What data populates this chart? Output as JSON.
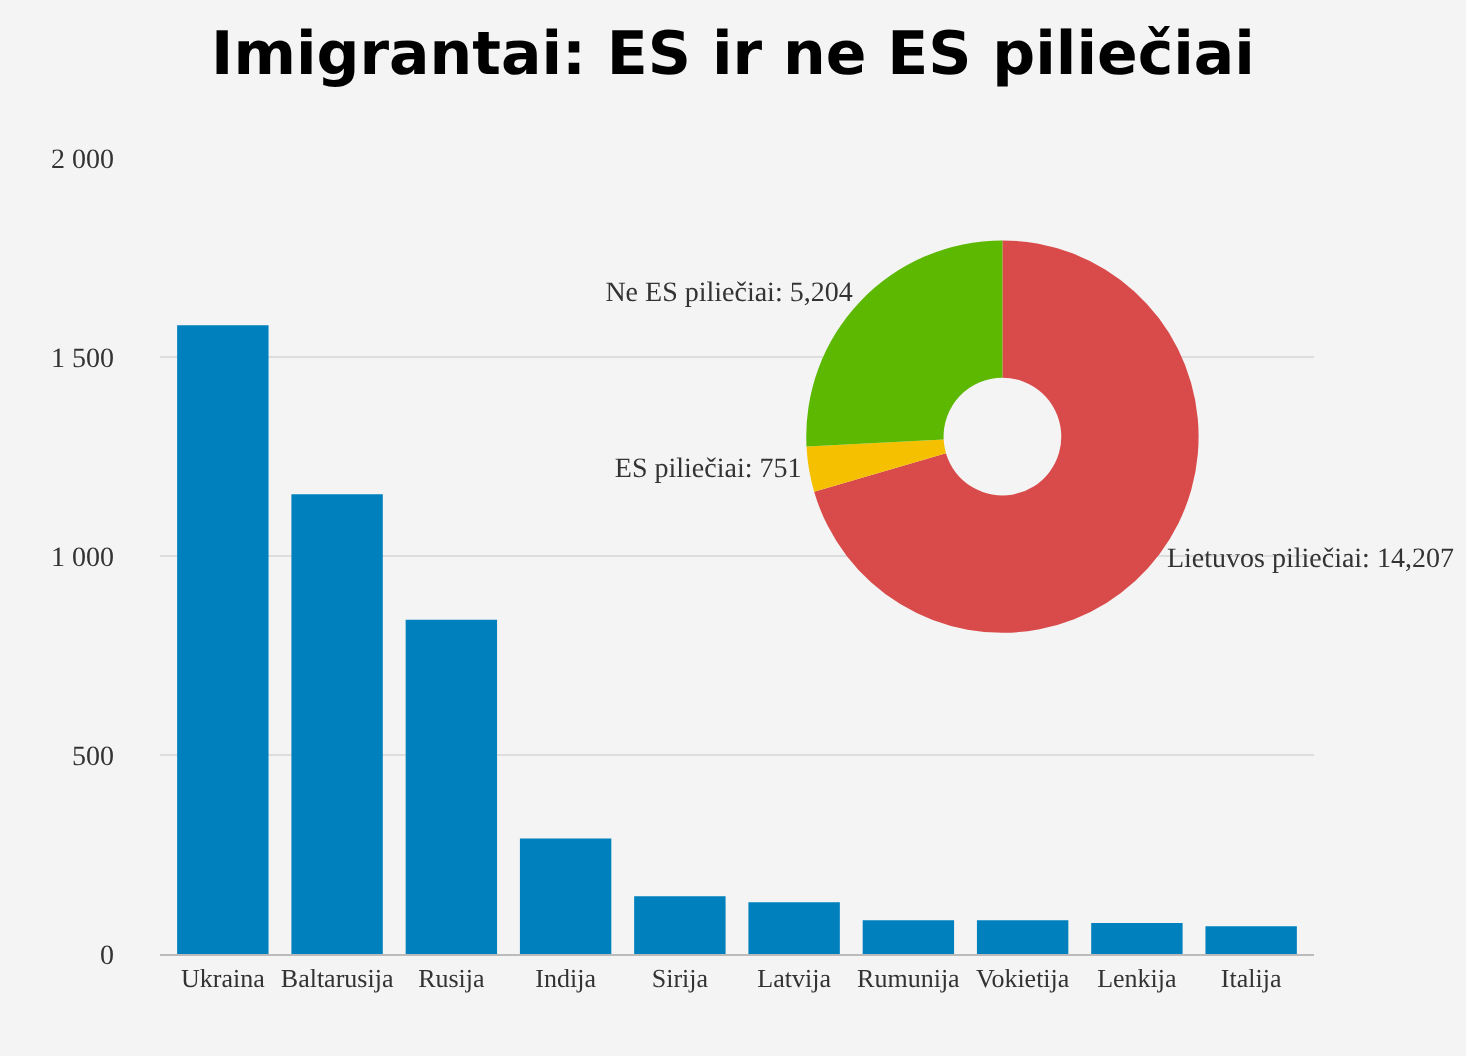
{
  "chart_data": [
    {
      "type": "bar",
      "title": "Imigrantai: ES ir ne ES piliečiai",
      "categories": [
        "Ukraina",
        "Baltarusija",
        "Rusija",
        "Indija",
        "Sirija",
        "Latvija",
        "Rumunija",
        "Vokietija",
        "Lenkija",
        "Italija"
      ],
      "values": [
        1580,
        1155,
        840,
        290,
        145,
        130,
        85,
        85,
        78,
        70
      ],
      "color": "#0080bd",
      "ylim": [
        0,
        2000
      ],
      "yticks": [
        0,
        500,
        {
          "value": 1000,
          "label": "1 000"
        },
        {
          "value": 1500,
          "label": "1 500"
        },
        {
          "value": 2000,
          "label": "2 000"
        }
      ],
      "grid": "y",
      "legend": false
    },
    {
      "type": "donut",
      "categories": [
        "Lietuvos piliečiai: 14,207",
        "ES piliečiai: 751",
        "Ne ES piliečiai: 5,204"
      ],
      "values": [
        14207,
        751,
        5204
      ],
      "colors": [
        "#d94a4a",
        "#f5c000",
        "#5cb800"
      ],
      "legend": false
    }
  ]
}
